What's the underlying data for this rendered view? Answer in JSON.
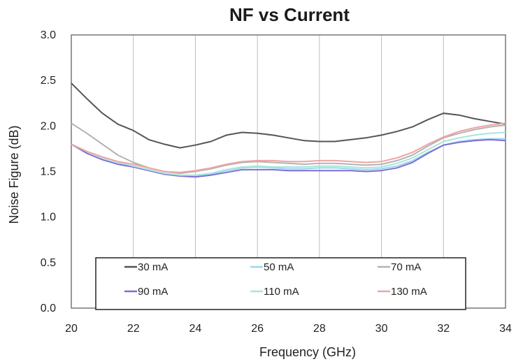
{
  "chart_data": {
    "type": "line",
    "title": "NF vs Current",
    "xlabel": "Frequency (GHz)",
    "ylabel": "Noise Figure (dB)",
    "xlim": [
      20,
      34
    ],
    "ylim": [
      0.0,
      3.0
    ],
    "xticks": [
      "20",
      "22",
      "24",
      "26",
      "28",
      "30",
      "32",
      "34"
    ],
    "yticks": [
      "0.0",
      "0.5",
      "1.0",
      "1.5",
      "2.0",
      "2.5",
      "3.0"
    ],
    "grid": "vertical",
    "legend_placement": "bottom",
    "x": [
      20,
      20.5,
      21,
      21.5,
      22,
      22.5,
      23,
      23.5,
      24,
      24.5,
      25,
      25.5,
      26,
      26.5,
      27,
      27.5,
      28,
      28.5,
      29,
      29.5,
      30,
      30.5,
      31,
      31.5,
      32,
      32.5,
      33,
      33.5,
      34
    ],
    "series": [
      {
        "name": "30 mA",
        "color": "#555555",
        "values": [
          2.47,
          2.3,
          2.14,
          2.02,
          1.95,
          1.85,
          1.8,
          1.76,
          1.79,
          1.83,
          1.9,
          1.93,
          1.92,
          1.9,
          1.87,
          1.84,
          1.83,
          1.83,
          1.85,
          1.87,
          1.9,
          1.94,
          1.99,
          2.07,
          2.14,
          2.12,
          2.08,
          2.05,
          2.02
        ]
      },
      {
        "name": "50 mA",
        "color": "#9fd6ee",
        "values": [
          1.8,
          1.72,
          1.66,
          1.6,
          1.56,
          1.52,
          1.48,
          1.45,
          1.45,
          1.47,
          1.51,
          1.54,
          1.55,
          1.54,
          1.53,
          1.53,
          1.54,
          1.54,
          1.53,
          1.52,
          1.53,
          1.56,
          1.62,
          1.71,
          1.79,
          1.83,
          1.85,
          1.86,
          1.86
        ]
      },
      {
        "name": "70 mA",
        "color": "#b3b3b3",
        "values": [
          2.03,
          1.92,
          1.8,
          1.68,
          1.6,
          1.54,
          1.5,
          1.48,
          1.5,
          1.53,
          1.57,
          1.6,
          1.61,
          1.6,
          1.59,
          1.58,
          1.59,
          1.59,
          1.58,
          1.57,
          1.58,
          1.62,
          1.68,
          1.78,
          1.87,
          1.92,
          1.96,
          1.99,
          2.01
        ]
      },
      {
        "name": "90 mA",
        "color": "#7e6fd0",
        "values": [
          1.8,
          1.7,
          1.63,
          1.58,
          1.55,
          1.51,
          1.47,
          1.45,
          1.44,
          1.46,
          1.49,
          1.52,
          1.52,
          1.52,
          1.51,
          1.51,
          1.51,
          1.51,
          1.51,
          1.5,
          1.51,
          1.54,
          1.6,
          1.7,
          1.79,
          1.82,
          1.84,
          1.85,
          1.84
        ]
      },
      {
        "name": "110 mA",
        "color": "#a8e6dc",
        "values": [
          1.8,
          1.72,
          1.65,
          1.6,
          1.56,
          1.52,
          1.48,
          1.46,
          1.46,
          1.48,
          1.52,
          1.55,
          1.56,
          1.55,
          1.55,
          1.55,
          1.56,
          1.56,
          1.55,
          1.54,
          1.55,
          1.59,
          1.65,
          1.74,
          1.83,
          1.87,
          1.9,
          1.92,
          1.93
        ]
      },
      {
        "name": "130 mA",
        "color": "#f2a3a3",
        "values": [
          1.8,
          1.72,
          1.66,
          1.61,
          1.58,
          1.54,
          1.5,
          1.49,
          1.51,
          1.54,
          1.58,
          1.61,
          1.62,
          1.62,
          1.61,
          1.61,
          1.62,
          1.62,
          1.61,
          1.6,
          1.61,
          1.65,
          1.71,
          1.8,
          1.88,
          1.94,
          1.98,
          2.01,
          2.03
        ]
      }
    ]
  }
}
